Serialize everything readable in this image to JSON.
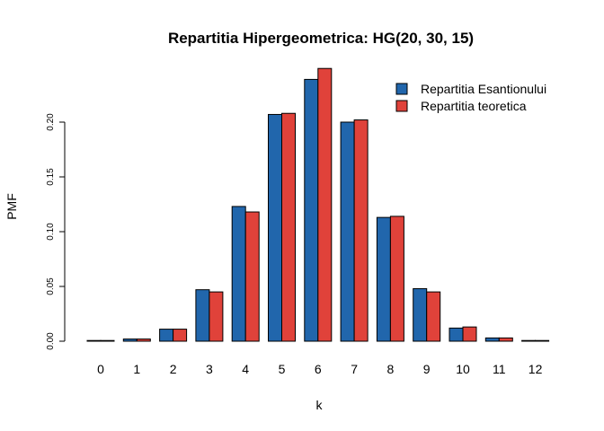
{
  "chart_data": {
    "type": "bar",
    "title": "Repartitia Hipergeometrica: HG(20, 30, 15)",
    "xlabel": "k",
    "ylabel": "PMF",
    "categories": [
      "0",
      "1",
      "2",
      "3",
      "4",
      "5",
      "6",
      "7",
      "8",
      "9",
      "10",
      "11",
      "12"
    ],
    "series": [
      {
        "name": "Repartitia Esantionului",
        "color": "#2166AC",
        "values": [
          0.0005,
          0.002,
          0.011,
          0.047,
          0.123,
          0.207,
          0.239,
          0.2,
          0.113,
          0.048,
          0.012,
          0.003,
          0.0005
        ]
      },
      {
        "name": "Repartitia teoretica",
        "color": "#E0423A",
        "values": [
          0.0003,
          0.002,
          0.011,
          0.045,
          0.118,
          0.208,
          0.249,
          0.202,
          0.114,
          0.045,
          0.013,
          0.003,
          0.0003
        ]
      }
    ],
    "ylim": [
      0,
      0.25
    ],
    "yticks": [
      "0.00",
      "0.05",
      "0.10",
      "0.15",
      "0.20"
    ],
    "grid": false,
    "legend_position": "top-right"
  }
}
